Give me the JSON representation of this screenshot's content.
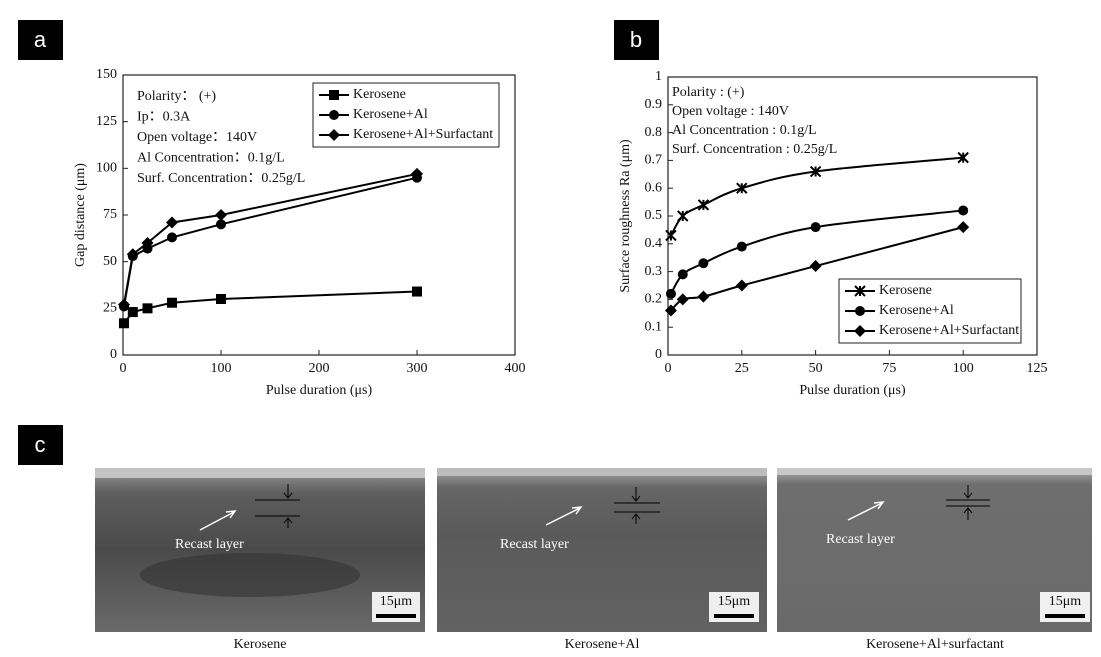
{
  "panels": [
    "a",
    "b",
    "c"
  ],
  "chart_data": [
    {
      "type": "line",
      "smooth": false,
      "legend": "upper right",
      "x_label": "Pulse duration (μs)",
      "y_label": "Gap distance (μm)",
      "annotations": [
        "Polarity： (+)",
        "Ip：0.3A",
        "Open voltage：140V",
        "Al Concentration：0.1g/L",
        "Surf. Concentration：0.25g/L"
      ],
      "x": [
        1,
        10,
        25,
        50,
        100,
        300
      ],
      "xlim": [
        0,
        400
      ],
      "xticks": [
        0,
        100,
        200,
        300,
        400
      ],
      "ylim": [
        0,
        150
      ],
      "yticks": [
        0,
        25,
        50,
        75,
        100,
        125,
        150
      ],
      "series": [
        {
          "name": "Kerosene",
          "color": "#000000",
          "marker": "square",
          "values": [
            17,
            23,
            25,
            28,
            30,
            34
          ]
        },
        {
          "name": "Kerosene+Al",
          "color": "#000000",
          "marker": "circle",
          "values": [
            26,
            53,
            57,
            63,
            70,
            95
          ]
        },
        {
          "name": "Kerosene+Al+Surfactant",
          "color": "#000000",
          "marker": "diamond",
          "values": [
            27,
            54,
            60,
            71,
            75,
            97
          ]
        }
      ]
    },
    {
      "type": "line",
      "smooth": true,
      "legend": "lower right",
      "x_label": "Pulse duration (μs)",
      "y_label": "Surface roughness Ra (μm)",
      "annotations": [
        "Polarity : (+)",
        "Open voltage : 140V",
        "Al Concentration : 0.1g/L",
        "Surf. Concentration : 0.25g/L"
      ],
      "x": [
        1,
        5,
        12,
        25,
        50,
        100
      ],
      "xlim": [
        0,
        125
      ],
      "xticks": [
        0,
        25,
        50,
        75,
        100,
        125
      ],
      "ylim": [
        0,
        1
      ],
      "yticks": [
        0,
        0.1,
        0.2,
        0.3,
        0.4,
        0.5,
        0.6,
        0.7,
        0.8,
        0.9,
        1
      ],
      "series": [
        {
          "name": "Kerosene",
          "color": "#000000",
          "marker": "star",
          "values": [
            0.43,
            0.5,
            0.54,
            0.6,
            0.66,
            0.71
          ]
        },
        {
          "name": "Kerosene+Al",
          "color": "#000000",
          "marker": "circle",
          "values": [
            0.22,
            0.29,
            0.33,
            0.39,
            0.46,
            0.52
          ]
        },
        {
          "name": "Kerosene+Al+Surfactant",
          "color": "#000000",
          "marker": "diamond",
          "values": [
            0.16,
            0.2,
            0.21,
            0.25,
            0.32,
            0.46
          ]
        }
      ]
    }
  ],
  "micrographs": [
    {
      "label": "Recast layer",
      "scale": "15μm",
      "caption": "Kerosene"
    },
    {
      "label": "Recast layer",
      "scale": "15μm",
      "caption": "Kerosene+Al"
    },
    {
      "label": "Recast layer",
      "scale": "15μm",
      "caption": "Kerosene+Al+surfactant"
    }
  ]
}
